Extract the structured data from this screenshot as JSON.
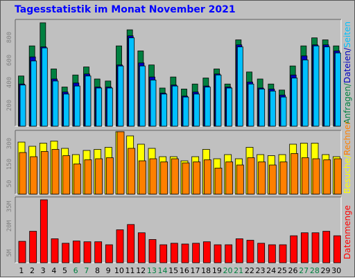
{
  "title": "Tagesstatistik im Monat November 2021",
  "colors": {
    "background": "#c0c0c0",
    "anfragen": "#008040",
    "dateien": "#0000c0",
    "seiten": "#00c0ff",
    "rechner": "#ff8000",
    "besuche": "#ffff00",
    "datenmenge": "#ff0000",
    "day_normal": "#000000",
    "day_weekend": "#008040"
  },
  "chart_data": [
    {
      "type": "bar",
      "categories": [
        "1",
        "2",
        "3",
        "4",
        "5",
        "6",
        "7",
        "8",
        "9",
        "10",
        "11",
        "12",
        "13",
        "14",
        "15",
        "16",
        "17",
        "18",
        "19",
        "20",
        "21",
        "22",
        "23",
        "24",
        "25",
        "26",
        "27",
        "28",
        "29",
        "30"
      ],
      "weekend_days": [
        "6",
        "7",
        "13",
        "14",
        "20",
        "21",
        "27",
        "28"
      ],
      "yticks": [
        "200",
        "400",
        "600",
        "800"
      ],
      "ylim": [
        0,
        1050
      ],
      "legend": [
        {
          "label": "Anfragen",
          "color": "#008040"
        },
        {
          "label": "Dateien",
          "color": "#0000c0"
        },
        {
          "label": "Seiten",
          "color": "#00c0ff"
        }
      ],
      "series": [
        {
          "name": "Anfragen",
          "values": [
            500,
            800,
            1030,
            570,
            390,
            510,
            590,
            470,
            450,
            800,
            960,
            750,
            610,
            380,
            490,
            370,
            420,
            480,
            570,
            420,
            860,
            540,
            470,
            420,
            360,
            600,
            800,
            880,
            860,
            800
          ]
        },
        {
          "name": "Dateien",
          "values": [
            420,
            690,
            790,
            470,
            340,
            430,
            520,
            390,
            390,
            610,
            900,
            630,
            490,
            330,
            410,
            300,
            340,
            400,
            520,
            390,
            810,
            440,
            380,
            370,
            310,
            510,
            700,
            810,
            810,
            750
          ]
        },
        {
          "name": "Seiten",
          "values": [
            410,
            650,
            780,
            450,
            320,
            400,
            500,
            380,
            380,
            600,
            880,
            600,
            460,
            320,
            400,
            290,
            320,
            390,
            510,
            380,
            790,
            420,
            370,
            350,
            290,
            480,
            660,
            800,
            790,
            730
          ]
        }
      ]
    },
    {
      "type": "bar",
      "categories": [
        "1",
        "2",
        "3",
        "4",
        "5",
        "6",
        "7",
        "8",
        "9",
        "10",
        "11",
        "12",
        "13",
        "14",
        "15",
        "16",
        "17",
        "18",
        "19",
        "20",
        "21",
        "22",
        "23",
        "24",
        "25",
        "26",
        "27",
        "28",
        "29",
        "30"
      ],
      "yticks": [
        "50",
        "150",
        "300"
      ],
      "ylim": [
        0,
        300
      ],
      "legend": [
        {
          "label": "Besuche",
          "color": "#ffff00"
        },
        {
          "label": "Rechner",
          "color": "#ff8000"
        }
      ],
      "series": [
        {
          "name": "Besuche",
          "values": [
            250,
            230,
            245,
            255,
            220,
            190,
            210,
            215,
            225,
            300,
            280,
            240,
            220,
            180,
            180,
            160,
            180,
            215,
            170,
            190,
            170,
            225,
            190,
            185,
            190,
            240,
            245,
            245,
            190,
            180
          ]
        },
        {
          "name": "Rechner",
          "values": [
            200,
            180,
            205,
            215,
            185,
            145,
            165,
            170,
            175,
            300,
            220,
            160,
            170,
            155,
            170,
            150,
            155,
            165,
            125,
            155,
            140,
            175,
            155,
            140,
            155,
            195,
            175,
            170,
            165,
            170
          ]
        }
      ]
    },
    {
      "type": "bar",
      "categories": [
        "1",
        "2",
        "3",
        "4",
        "5",
        "6",
        "7",
        "8",
        "9",
        "10",
        "11",
        "12",
        "13",
        "14",
        "15",
        "16",
        "17",
        "18",
        "19",
        "20",
        "21",
        "22",
        "23",
        "24",
        "25",
        "26",
        "27",
        "28",
        "29",
        "30"
      ],
      "yticks": [
        "5M",
        "20M",
        "35M"
      ],
      "ylim": [
        0,
        43
      ],
      "legend": [
        {
          "label": "Datenmenge",
          "color": "#ff0000"
        }
      ],
      "series": [
        {
          "name": "Datenmenge",
          "values": [
            14.3,
            21,
            42,
            16,
            13,
            14.5,
            14,
            14,
            12,
            22,
            25.5,
            20,
            15.5,
            12,
            13,
            12.5,
            13,
            14,
            12,
            12,
            16,
            15,
            13,
            12,
            12,
            18,
            20,
            20,
            21,
            18
          ]
        }
      ]
    }
  ]
}
